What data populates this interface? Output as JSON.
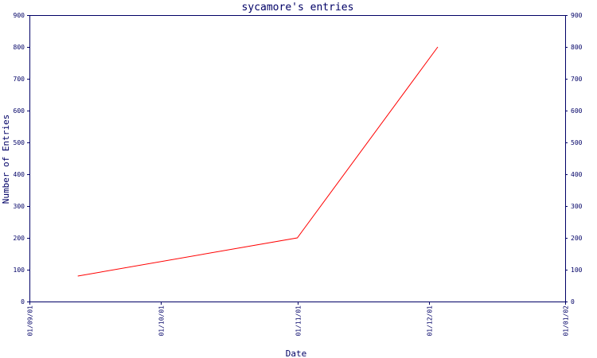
{
  "chart_data": {
    "type": "line",
    "title": "sycamore's entries",
    "xlabel": "Date",
    "ylabel": "Number of Entries",
    "x_ticks": [
      "01/09/01",
      "01/10/01",
      "01/11/01",
      "01/12/01",
      "01/01/02"
    ],
    "x_tick_dates": [
      "2001-09-01",
      "2001-10-01",
      "2001-11-01",
      "2001-12-01",
      "2002-01-01"
    ],
    "xlim": [
      "2001-09-01",
      "2002-01-01"
    ],
    "ylim": [
      0,
      900
    ],
    "y_ticks": [
      0,
      100,
      200,
      300,
      400,
      500,
      600,
      700,
      800,
      900
    ],
    "y_axis_right_mirror": true,
    "grid": false,
    "series": [
      {
        "color": "#ff0000",
        "x": [
          "2001-09-12",
          "2001-11-01",
          "2001-12-03"
        ],
        "values": [
          80,
          200,
          800
        ]
      }
    ],
    "colors": {
      "axis": "#000066",
      "text": "#000066",
      "line": "#ff0000",
      "background": "#ffffff"
    }
  }
}
